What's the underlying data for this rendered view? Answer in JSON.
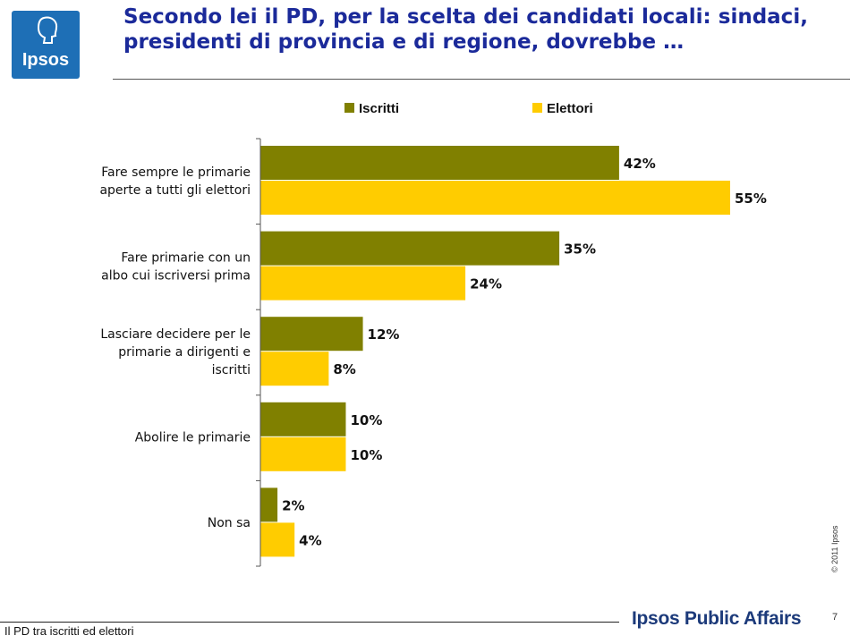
{
  "logo": {
    "text": "Ipsos"
  },
  "title": "Secondo lei il PD, per la scelta dei candidati locali: sindaci, presidenti di provincia e di regione, dovrebbe …",
  "colors": {
    "iscritti": "#808000",
    "elettori": "#ffcc00",
    "title": "#1b2a9a"
  },
  "chart_data": {
    "type": "bar",
    "orientation": "horizontal",
    "categories": [
      "Fare sempre le primarie aperte a tutti gli elettori",
      "Fare primarie con un albo cui iscriversi prima",
      "Lasciare decidere per le primarie a dirigenti e iscritti",
      "Abolire le primarie",
      "Non sa"
    ],
    "series": [
      {
        "name": "Iscritti",
        "values": [
          42,
          35,
          12,
          10,
          2
        ]
      },
      {
        "name": "Elettori",
        "values": [
          55,
          24,
          8,
          10,
          4
        ]
      }
    ],
    "value_labels": [
      [
        "42%",
        "35%",
        "12%",
        "10%",
        "2%"
      ],
      [
        "55%",
        "24%",
        "8%",
        "10%",
        "4%"
      ]
    ],
    "unit": "%",
    "legend": "top",
    "grid": false,
    "xlim": [
      0,
      60
    ]
  },
  "footer": {
    "copyright": "© 2011 Ipsos",
    "page_number": "7",
    "text": "Il PD tra iscritti ed elettori",
    "brand": "Ipsos Public Affairs"
  }
}
